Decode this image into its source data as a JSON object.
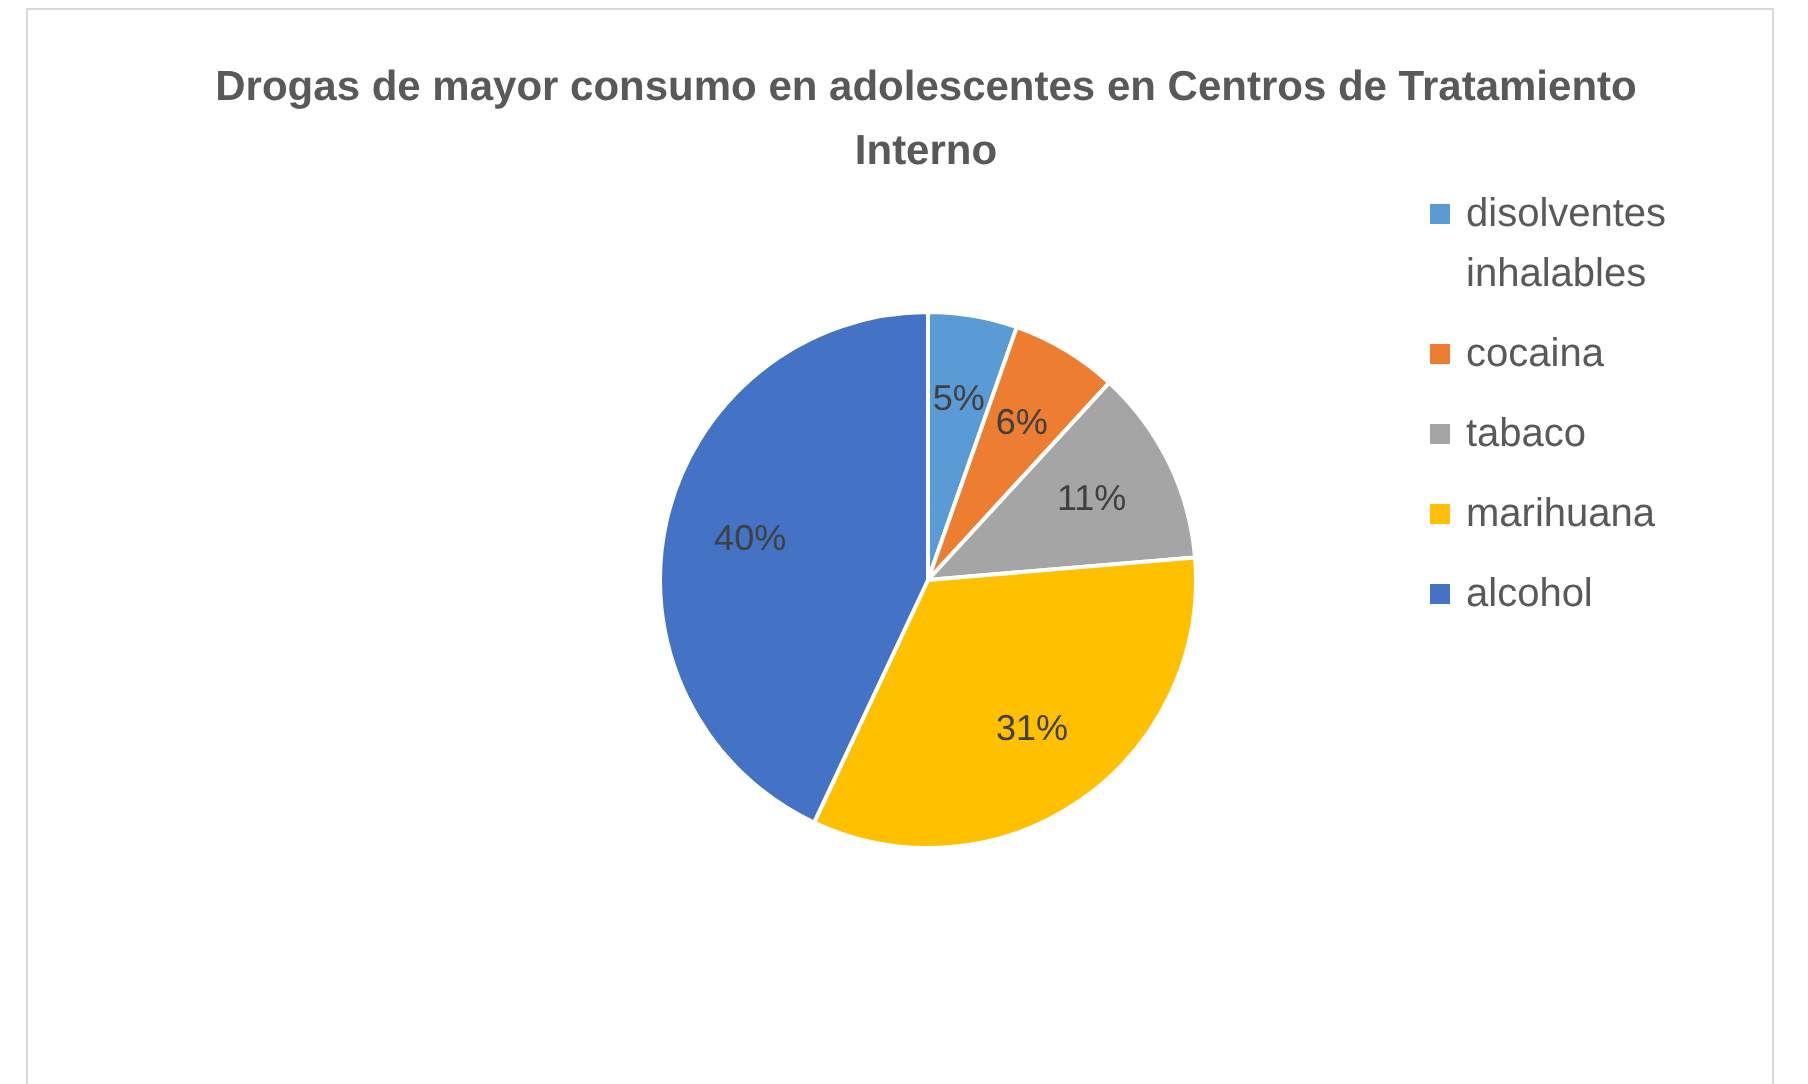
{
  "chart_data": {
    "type": "pie",
    "title": "Drogas de mayor consumo en adolescentes en Centros de Tratamiento Interno",
    "categories": [
      "disolventes inhalables",
      "cocaina",
      "tabaco",
      "marihuana",
      "alcohol"
    ],
    "values": [
      5,
      6,
      11,
      31,
      40
    ],
    "colors": [
      "#5b9bd5",
      "#ed7d31",
      "#a5a5a5",
      "#ffc000",
      "#4472c4"
    ],
    "value_labels": [
      "5%",
      "6%",
      "11%",
      "31%",
      "40%"
    ],
    "legend": "right"
  }
}
